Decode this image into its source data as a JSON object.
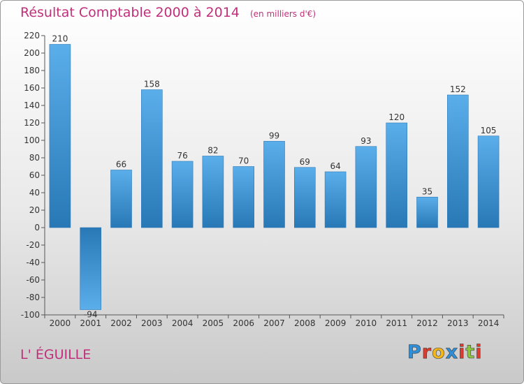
{
  "title": "Résultat Comptable 2000 à 2014",
  "unit": "(en milliers d'€)",
  "commune": "L' ÉGUILLE",
  "brand": {
    "text": "Proxiti",
    "letters": [
      "P",
      "r",
      "o",
      "x",
      "i",
      "t",
      "i"
    ],
    "colors": [
      "#2f8fd8",
      "#e23b2e",
      "#f3b71b",
      "#2f8fd8",
      "#e23b2e",
      "#8cc63f",
      "#e23b2e"
    ]
  },
  "colors": {
    "title": "#c0307a",
    "bar_light": "#5aaeea",
    "bar_dark": "#2878b6"
  },
  "chart_data": {
    "type": "bar",
    "categories": [
      "2000",
      "2001",
      "2002",
      "2003",
      "2004",
      "2005",
      "2006",
      "2007",
      "2008",
      "2009",
      "2010",
      "2011",
      "2012",
      "2013",
      "2014"
    ],
    "values": [
      210,
      -94,
      66,
      158,
      76,
      82,
      70,
      99,
      69,
      64,
      93,
      120,
      35,
      152,
      105
    ],
    "labels": [
      "210",
      "-94",
      "66",
      "158",
      "76",
      "82",
      "70",
      "99",
      "69",
      "64",
      "93",
      "120",
      "35",
      "152",
      "105"
    ],
    "yticks": [
      220,
      200,
      180,
      160,
      140,
      120,
      100,
      80,
      60,
      40,
      20,
      0,
      -20,
      -40,
      -60,
      -80,
      -100
    ],
    "ylim": [
      -100,
      220
    ],
    "grid": false,
    "legend": "none"
  }
}
